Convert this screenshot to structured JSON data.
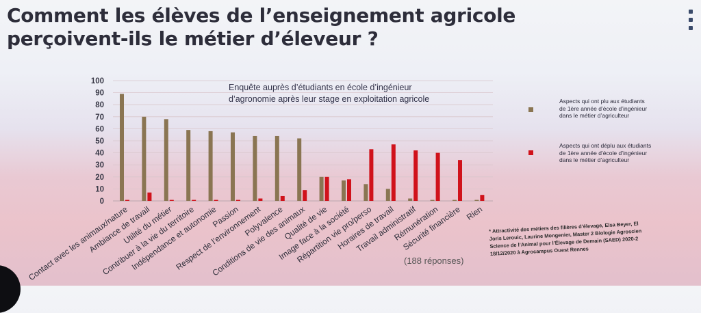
{
  "slide": {
    "title_line1": "Comment les élèves de l’enseignement agricole",
    "title_line2": "perçoivent-ils le métier d’éleveur ?"
  },
  "chart_data": {
    "type": "bar",
    "subtitle_line1": "Enquête auprès d’étudiants en école d’ingénieur",
    "subtitle_line2": "d’agronomie après leur stage en exploitation agricole",
    "ylim": [
      0,
      100
    ],
    "yticks": [
      0,
      10,
      20,
      30,
      40,
      50,
      60,
      70,
      80,
      90,
      100
    ],
    "categories": [
      "Contact avec les animaux/nature",
      "Ambiance de travail",
      "Utilité du métier",
      "Contribuer à la vie du territoire",
      "Indépendance et autonomie",
      "Passion",
      "Respect de l’environnement",
      "Polyvalence",
      "Conditions de vie des animaux",
      "Qualité de vie",
      "Image face à la société",
      "Répartition vie pro/perso",
      "Horaires de travail",
      "Travail administratif",
      "Rémunération",
      "Sécurité financière",
      "Rien"
    ],
    "series": [
      {
        "name_lines": [
          "Aspects qui ont plu aux étudiants",
          "de 1ère année d’école d’ingénieur",
          "dans le métier d’agriculteur"
        ],
        "color": "#8a7552",
        "values": [
          89,
          70,
          68,
          59,
          58,
          57,
          54,
          54,
          52,
          20,
          17,
          14,
          10,
          2,
          0,
          0,
          0
        ]
      },
      {
        "name_lines": [
          "Aspects qui ont déplu aux étudiants",
          "de 1ère année d’école d’ingénieur",
          "dans le métier d’agriculteur"
        ],
        "color": "#d0121b",
        "values": [
          0,
          7,
          0,
          0,
          0,
          0,
          2,
          4,
          9,
          20,
          18,
          43,
          47,
          42,
          40,
          34,
          5
        ]
      }
    ],
    "grid": true,
    "legend": "right"
  },
  "responses": "(188 réponses)",
  "source_lines": [
    "* Attractivité des métiers des filières d’élevage, Elsa Beyer, El",
    "Joris Lerouic, Laurine Mongenier, Master 2 Biologie Agroscien",
    "Science de l’Animal pour l’Élevage de Demain (SAED) 2020-2",
    "18/12/2020 à Agrocampus Ouest Rennes"
  ]
}
